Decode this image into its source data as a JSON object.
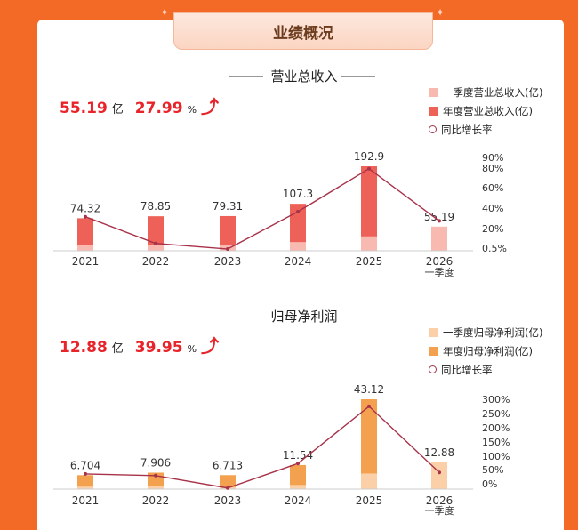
{
  "header": {
    "title": "业绩概况"
  },
  "revenue": {
    "section_title": "营业总收入",
    "stat_value": "55.19",
    "stat_unit": "亿",
    "growth_value": "27.99",
    "growth_unit": "%",
    "legend": [
      "一季度营业总收入(亿)",
      "年度营业总收入(亿)",
      "同比增长率"
    ]
  },
  "profit": {
    "section_title": "归母净利润",
    "stat_value": "12.88",
    "stat_unit": "亿",
    "growth_value": "39.95",
    "growth_unit": "%",
    "legend": [
      "一季度归母净利润(亿)",
      "年度归母净利润(亿)",
      "同比增长率"
    ]
  },
  "chart_data": [
    {
      "type": "bar",
      "title": "营业总收入",
      "categories": [
        "2021",
        "2022",
        "2023",
        "2024",
        "2025",
        "2026"
      ],
      "category_sublabels": [
        "",
        "",
        "",
        "",
        "",
        "一季度"
      ],
      "series": [
        {
          "name": "一季度营业总收入(亿)",
          "type": "bar",
          "values": [
            13,
            13,
            14,
            20,
            33,
            55.19
          ],
          "color": "#f7b9b0"
        },
        {
          "name": "年度营业总收入(亿)",
          "type": "bar",
          "values": [
            74.32,
            78.85,
            79.31,
            107.3,
            192.9,
            null
          ],
          "color": "#ee6158"
        },
        {
          "name": "同比增长率",
          "type": "line",
          "axis": "right",
          "values": [
            32,
            6,
            0.5,
            37,
            79,
            28
          ],
          "color": "#a8324a"
        }
      ],
      "data_labels": [
        "74.32",
        "78.85",
        "79.31",
        "107.3",
        "192.9",
        "55.19"
      ],
      "right_axis_ticks": [
        "90%",
        "80%",
        "60%",
        "40%",
        "20%",
        "0.5%"
      ],
      "right_axis_tick_values": [
        90,
        80,
        60,
        40,
        20,
        0.5
      ]
    },
    {
      "type": "bar",
      "title": "归母净利润",
      "categories": [
        "2021",
        "2022",
        "2023",
        "2024",
        "2025",
        "2026"
      ],
      "category_sublabels": [
        "",
        "",
        "",
        "",
        "",
        "一季度"
      ],
      "series": [
        {
          "name": "一季度归母净利润(亿)",
          "type": "bar",
          "values": [
            1.2,
            1.5,
            1.0,
            2.0,
            7.5,
            12.88
          ],
          "color": "#fbd0a8"
        },
        {
          "name": "年度归母净利润(亿)",
          "type": "bar",
          "values": [
            6.704,
            7.906,
            6.713,
            11.54,
            43.12,
            null
          ],
          "color": "#f3a14e"
        },
        {
          "name": "同比增长率",
          "type": "line",
          "axis": "right",
          "values": [
            35,
            29,
            -15,
            72,
            275,
            40
          ],
          "color": "#a8324a"
        }
      ],
      "data_labels": [
        "6.704",
        "7.906",
        "6.713",
        "11.54",
        "43.12",
        "12.88"
      ],
      "right_axis_ticks": [
        "300%",
        "250%",
        "200%",
        "150%",
        "100%",
        "50%",
        "0%"
      ],
      "right_axis_tick_values": [
        300,
        250,
        200,
        150,
        100,
        50,
        0
      ]
    }
  ]
}
